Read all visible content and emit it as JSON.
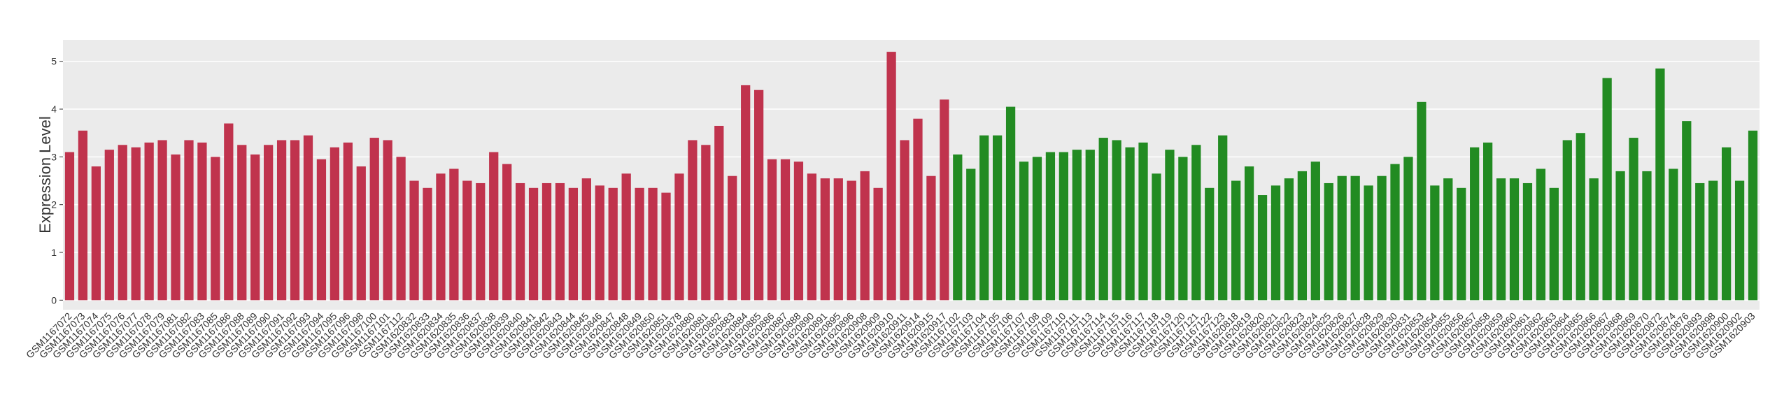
{
  "chart_data": {
    "type": "bar",
    "y_label": "Expression Level",
    "categories": [
      "GSM1167072",
      "GSM1167073",
      "GSM1167074",
      "GSM1167075",
      "GSM1167076",
      "GSM1167077",
      "GSM1167078",
      "GSM1167079",
      "GSM1167081",
      "GSM1167082",
      "GSM1167083",
      "GSM1167085",
      "GSM1167086",
      "GSM1167088",
      "GSM1167089",
      "GSM1167090",
      "GSM1167091",
      "GSM1167092",
      "GSM1167093",
      "GSM1167094",
      "GSM1167095",
      "GSM1167096",
      "GSM1167098",
      "GSM1167100",
      "GSM1167101",
      "GSM1167112",
      "GSM1620832",
      "GSM1620833",
      "GSM1620834",
      "GSM1620835",
      "GSM1620836",
      "GSM1620837",
      "GSM1620838",
      "GSM1620839",
      "GSM1620840",
      "GSM1620841",
      "GSM1620842",
      "GSM1620843",
      "GSM1620844",
      "GSM1620845",
      "GSM1620846",
      "GSM1620847",
      "GSM1620848",
      "GSM1620849",
      "GSM1620850",
      "GSM1620851",
      "GSM1620878",
      "GSM1620880",
      "GSM1620881",
      "GSM1620882",
      "GSM1620883",
      "GSM1620884",
      "GSM1620885",
      "GSM1620886",
      "GSM1620887",
      "GSM1620888",
      "GSM1620890",
      "GSM1620891",
      "GSM1620895",
      "GSM1620896",
      "GSM1620908",
      "GSM1620909",
      "GSM1620910",
      "GSM1620911",
      "GSM1620914",
      "GSM1620915",
      "GSM1620917",
      "GSM1167102",
      "GSM1167103",
      "GSM1167104",
      "GSM1167105",
      "GSM1167106",
      "GSM1167107",
      "GSM1167108",
      "GSM1167109",
      "GSM1167110",
      "GSM1167111",
      "GSM1167113",
      "GSM1167114",
      "GSM1167115",
      "GSM1167116",
      "GSM1167117",
      "GSM1167118",
      "GSM1167119",
      "GSM1167120",
      "GSM1167121",
      "GSM1167122",
      "GSM1167123",
      "GSM1620818",
      "GSM1620819",
      "GSM1620820",
      "GSM1620821",
      "GSM1620822",
      "GSM1620823",
      "GSM1620824",
      "GSM1620825",
      "GSM1620826",
      "GSM1620827",
      "GSM1620828",
      "GSM1620829",
      "GSM1620830",
      "GSM1620831",
      "GSM1620853",
      "GSM1620854",
      "GSM1620855",
      "GSM1620856",
      "GSM1620857",
      "GSM1620858",
      "GSM1620859",
      "GSM1620860",
      "GSM1620861",
      "GSM1620862",
      "GSM1620863",
      "GSM1620864",
      "GSM1620865",
      "GSM1620866",
      "GSM1620867",
      "GSM1620868",
      "GSM1620869",
      "GSM1620870",
      "GSM1620872",
      "GSM1620874",
      "GSM1620876",
      "GSM1620893",
      "GSM1620898",
      "GSM1620900",
      "GSM1620902",
      "GSM1620903"
    ],
    "values": [
      3.1,
      3.55,
      2.8,
      3.15,
      3.25,
      3.2,
      3.3,
      3.35,
      3.05,
      3.35,
      3.3,
      3.0,
      3.7,
      3.25,
      3.05,
      3.25,
      3.35,
      3.35,
      3.45,
      2.95,
      3.2,
      3.3,
      2.8,
      3.4,
      3.35,
      3.0,
      2.5,
      2.35,
      2.65,
      2.75,
      2.5,
      2.45,
      3.1,
      2.85,
      2.45,
      2.35,
      2.45,
      2.45,
      2.35,
      2.55,
      2.4,
      2.35,
      2.65,
      2.35,
      2.35,
      2.25,
      2.65,
      3.35,
      3.25,
      3.65,
      2.6,
      4.5,
      4.4,
      2.95,
      2.95,
      2.9,
      2.65,
      2.55,
      2.55,
      2.5,
      2.7,
      2.35,
      5.2,
      3.35,
      3.8,
      2.6,
      4.2,
      3.05,
      2.75,
      3.45,
      3.45,
      4.05,
      2.9,
      3.0,
      3.1,
      3.1,
      3.15,
      3.15,
      3.4,
      3.35,
      3.2,
      3.3,
      2.65,
      3.15,
      3.0,
      3.25,
      2.35,
      3.45,
      2.5,
      2.8,
      2.2,
      2.4,
      2.55,
      2.7,
      2.9,
      2.45,
      2.6,
      2.6,
      2.4,
      2.6,
      2.85,
      3.0,
      4.15,
      2.4,
      2.55,
      2.35,
      3.2,
      3.3,
      2.55,
      2.55,
      2.45,
      2.75,
      2.35,
      3.35,
      3.5,
      2.55,
      4.65,
      2.7,
      3.4,
      2.7,
      4.85,
      2.75,
      3.75,
      2.45,
      2.5,
      3.2,
      2.5,
      3.55
    ],
    "colors": [
      "#c0334d",
      "#c0334d",
      "#c0334d",
      "#c0334d",
      "#c0334d",
      "#c0334d",
      "#c0334d",
      "#c0334d",
      "#c0334d",
      "#c0334d",
      "#c0334d",
      "#c0334d",
      "#c0334d",
      "#c0334d",
      "#c0334d",
      "#c0334d",
      "#c0334d",
      "#c0334d",
      "#c0334d",
      "#c0334d",
      "#c0334d",
      "#c0334d",
      "#c0334d",
      "#c0334d",
      "#c0334d",
      "#c0334d",
      "#c0334d",
      "#c0334d",
      "#c0334d",
      "#c0334d",
      "#c0334d",
      "#c0334d",
      "#c0334d",
      "#c0334d",
      "#c0334d",
      "#c0334d",
      "#c0334d",
      "#c0334d",
      "#c0334d",
      "#c0334d",
      "#c0334d",
      "#c0334d",
      "#c0334d",
      "#c0334d",
      "#c0334d",
      "#c0334d",
      "#c0334d",
      "#c0334d",
      "#c0334d",
      "#c0334d",
      "#c0334d",
      "#c0334d",
      "#c0334d",
      "#c0334d",
      "#c0334d",
      "#c0334d",
      "#c0334d",
      "#c0334d",
      "#c0334d",
      "#c0334d",
      "#c0334d",
      "#c0334d",
      "#c0334d",
      "#c0334d",
      "#c0334d",
      "#c0334d",
      "#c0334d",
      "#228b22",
      "#228b22",
      "#228b22",
      "#228b22",
      "#228b22",
      "#228b22",
      "#228b22",
      "#228b22",
      "#228b22",
      "#228b22",
      "#228b22",
      "#228b22",
      "#228b22",
      "#228b22",
      "#228b22",
      "#228b22",
      "#228b22",
      "#228b22",
      "#228b22",
      "#228b22",
      "#228b22",
      "#228b22",
      "#228b22",
      "#228b22",
      "#228b22",
      "#228b22",
      "#228b22",
      "#228b22",
      "#228b22",
      "#228b22",
      "#228b22",
      "#228b22",
      "#228b22",
      "#228b22",
      "#228b22",
      "#228b22",
      "#228b22",
      "#228b22",
      "#228b22",
      "#228b22",
      "#228b22",
      "#228b22",
      "#228b22",
      "#228b22",
      "#228b22",
      "#228b22",
      "#228b22",
      "#228b22",
      "#228b22",
      "#228b22",
      "#228b22",
      "#228b22",
      "#228b22",
      "#228b22",
      "#228b22",
      "#228b22",
      "#228b22",
      "#228b22",
      "#228b22",
      "#228b22",
      "#228b22"
    ],
    "ylim": [
      -0.2,
      5.45
    ],
    "yticks": [
      0,
      1,
      2,
      3,
      4,
      5
    ],
    "grid": true
  }
}
